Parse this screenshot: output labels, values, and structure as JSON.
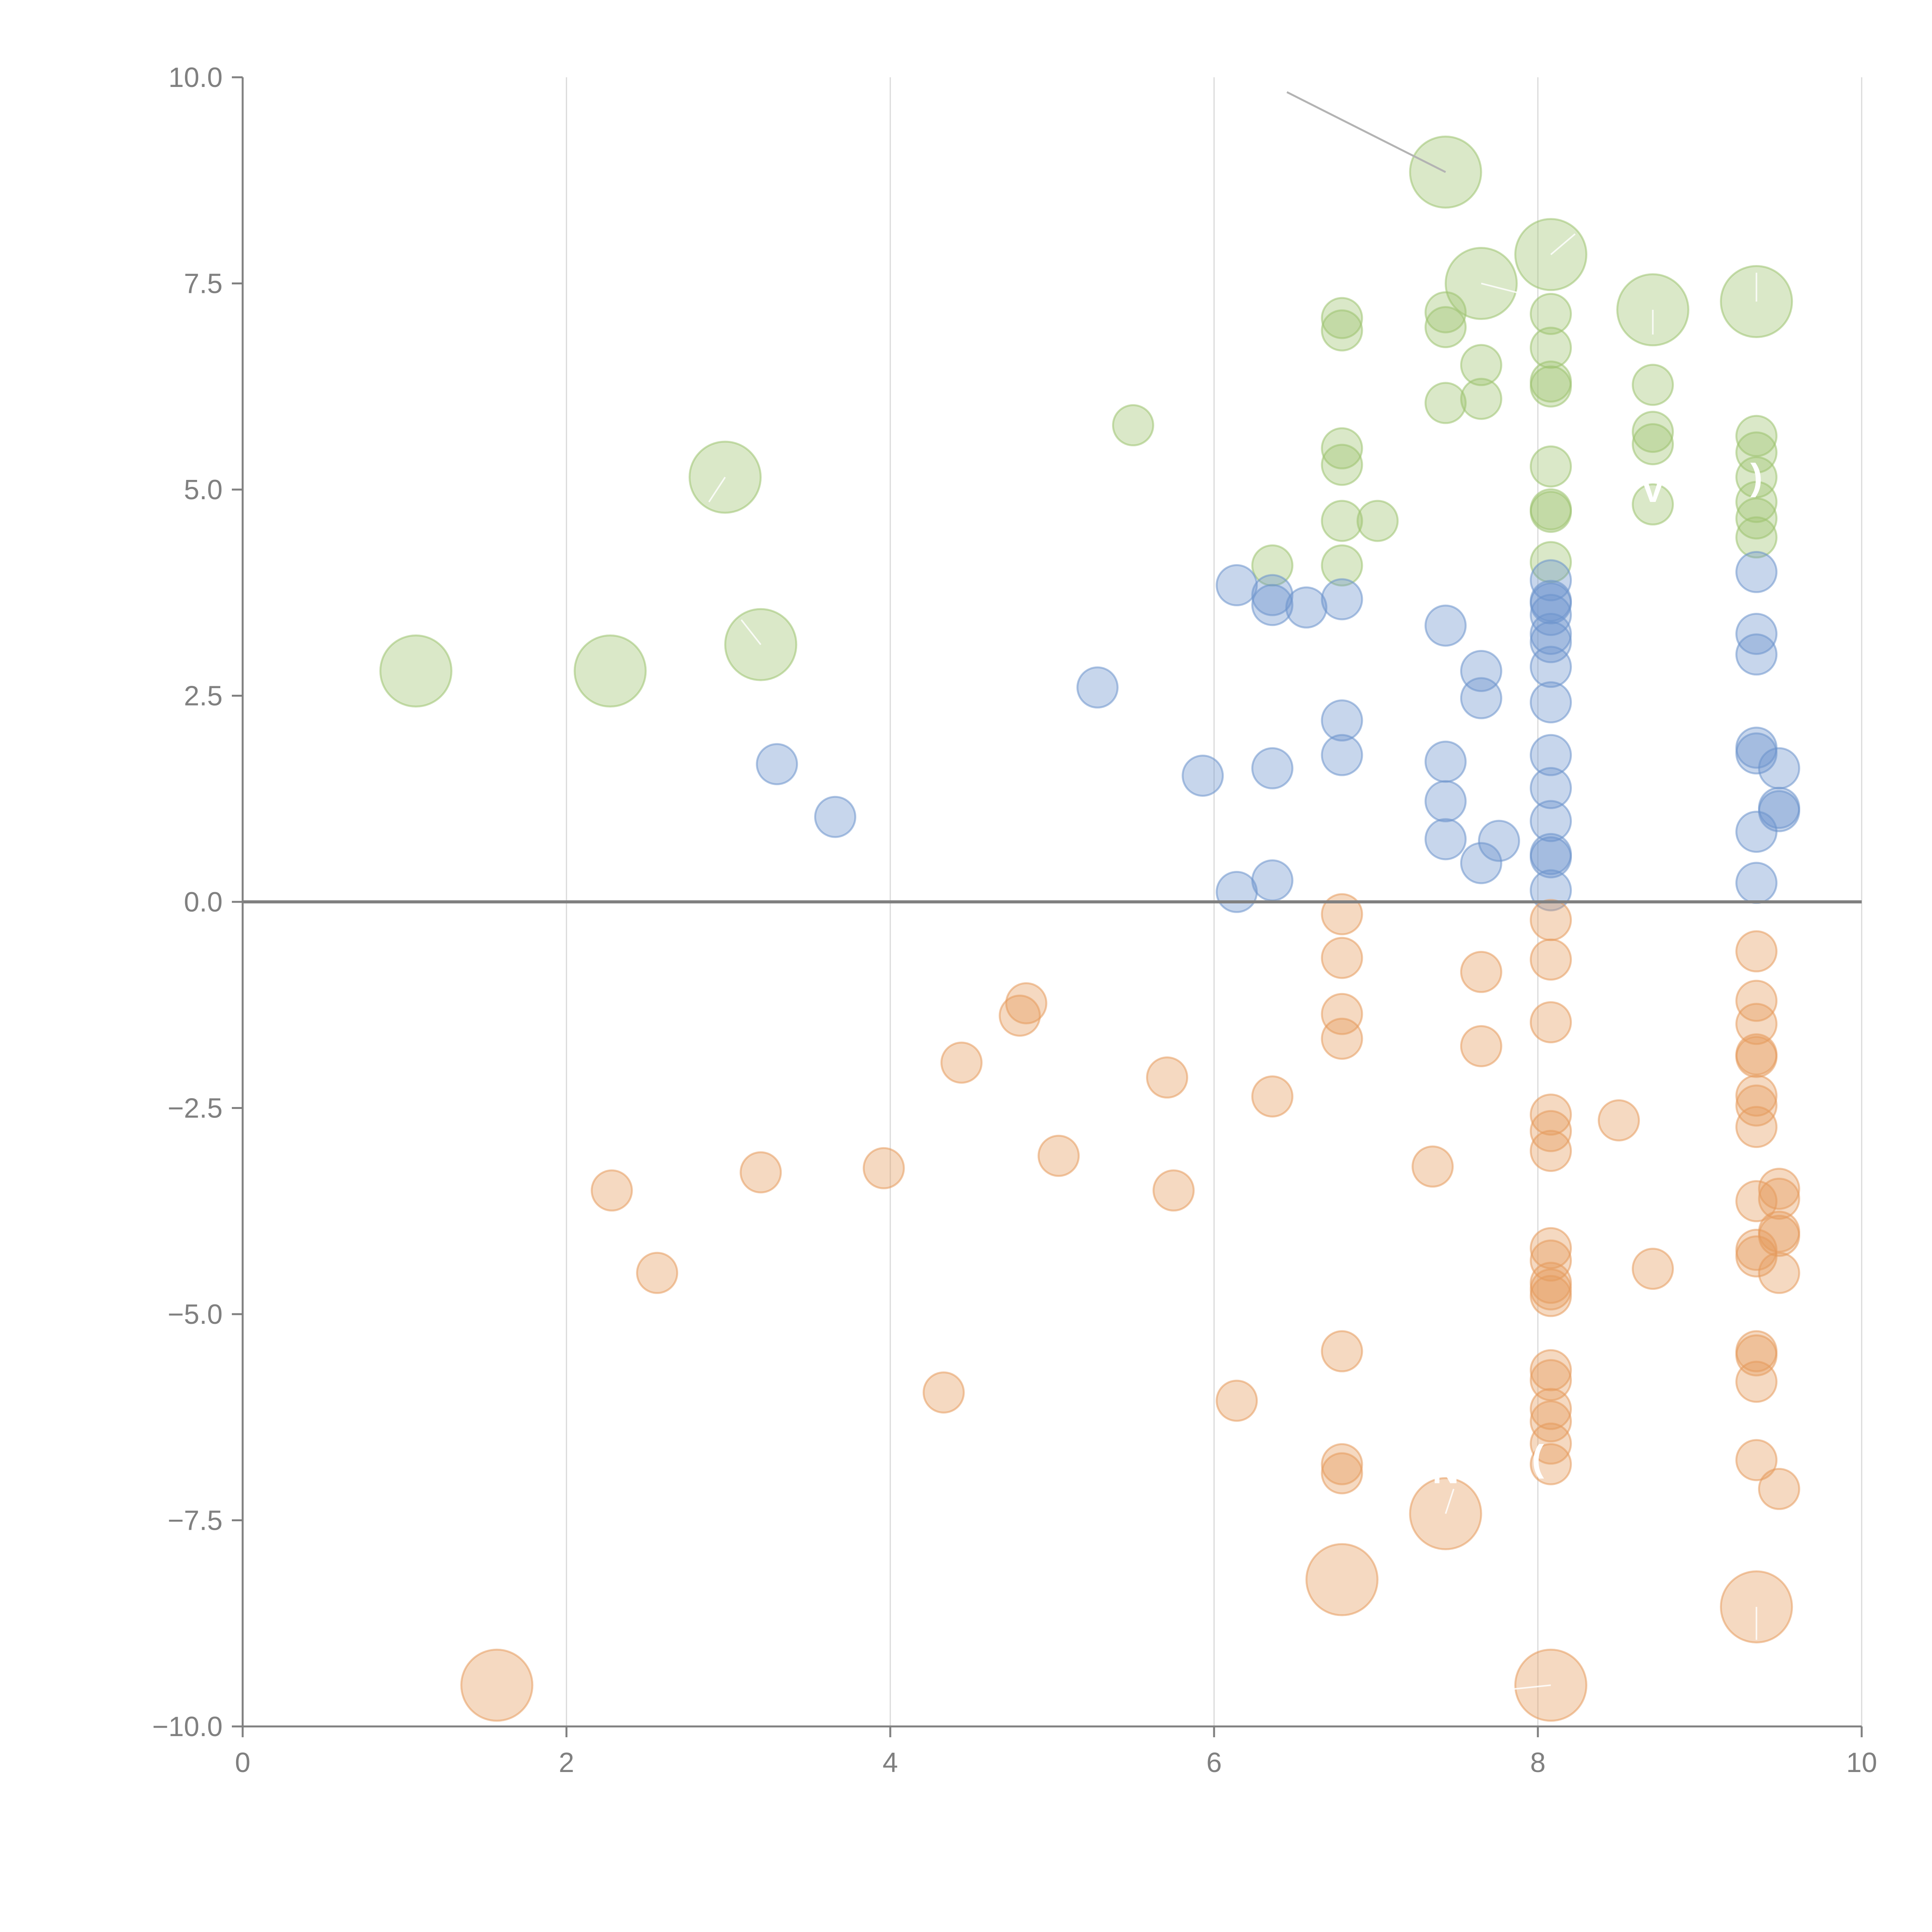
{
  "chart_data": {
    "type": "scatter",
    "title": "",
    "xlabel": "",
    "ylabel": "",
    "xlim": [
      0,
      10
    ],
    "ylim": [
      -10,
      10
    ],
    "grid": "vertical",
    "legend": "none",
    "xticks": [
      0,
      2,
      4,
      6,
      8,
      10
    ],
    "yticks": [
      10.0,
      7.5,
      5.0,
      2.5,
      0.0,
      -2.5,
      -5.0,
      -7.5,
      -10.0
    ],
    "xtick_labels": [
      "0",
      "2",
      "4",
      "6",
      "8",
      "10"
    ],
    "ytick_labels": [
      "10.0",
      "7.5",
      "5.0",
      "2.5",
      "0.0",
      "−2.5",
      "−5.0",
      "−7.5",
      "−10.0"
    ],
    "series": [
      {
        "name": "green",
        "color": "#9dc36f",
        "points": [
          [
            7.43,
            8.85,
            "L"
          ],
          [
            7.65,
            7.5,
            "L"
          ],
          [
            8.08,
            7.85,
            "L"
          ],
          [
            8.71,
            7.18,
            "L"
          ],
          [
            9.35,
            7.28,
            "L"
          ],
          [
            2.98,
            5.15,
            "L"
          ],
          [
            3.2,
            3.12,
            "L"
          ],
          [
            1.07,
            2.8,
            "L"
          ],
          [
            2.27,
            2.8,
            "L"
          ],
          [
            6.79,
            7.08,
            "S"
          ],
          [
            6.79,
            6.93,
            "S"
          ],
          [
            7.43,
            7.15,
            "S"
          ],
          [
            7.43,
            6.97,
            "S"
          ],
          [
            7.65,
            6.51,
            "S"
          ],
          [
            7.65,
            6.1,
            "S"
          ],
          [
            7.43,
            6.05,
            "S"
          ],
          [
            8.08,
            7.13,
            "S"
          ],
          [
            8.08,
            6.72,
            "S"
          ],
          [
            8.08,
            6.31,
            "S"
          ],
          [
            8.08,
            6.25,
            "S"
          ],
          [
            8.71,
            6.27,
            "S"
          ],
          [
            8.71,
            5.7,
            "S"
          ],
          [
            8.71,
            5.55,
            "S"
          ],
          [
            8.71,
            4.82,
            "S"
          ],
          [
            5.5,
            5.78,
            "S"
          ],
          [
            6.79,
            5.5,
            "S"
          ],
          [
            6.79,
            5.3,
            "S"
          ],
          [
            6.79,
            4.62,
            "S"
          ],
          [
            7.01,
            4.62,
            "S"
          ],
          [
            6.36,
            4.08,
            "S"
          ],
          [
            6.79,
            4.08,
            "S"
          ],
          [
            8.08,
            5.28,
            "S"
          ],
          [
            8.08,
            4.76,
            "S"
          ],
          [
            8.08,
            4.73,
            "S"
          ],
          [
            8.08,
            4.12,
            "S"
          ],
          [
            9.35,
            5.65,
            "S"
          ],
          [
            9.35,
            5.45,
            "S"
          ],
          [
            9.35,
            5.15,
            "S"
          ],
          [
            9.35,
            4.85,
            "S"
          ],
          [
            9.35,
            4.65,
            "S"
          ],
          [
            9.35,
            4.42,
            "S"
          ]
        ]
      },
      {
        "name": "blue",
        "color": "#6b94cc",
        "points": [
          [
            6.14,
            3.84,
            "S"
          ],
          [
            6.36,
            3.72,
            "S"
          ],
          [
            6.36,
            3.6,
            "S"
          ],
          [
            6.57,
            3.57,
            "S"
          ],
          [
            6.79,
            3.67,
            "S"
          ],
          [
            7.43,
            3.35,
            "S"
          ],
          [
            8.08,
            3.9,
            "S"
          ],
          [
            8.08,
            3.65,
            "S"
          ],
          [
            8.08,
            3.62,
            "S"
          ],
          [
            8.08,
            3.48,
            "S"
          ],
          [
            8.08,
            3.25,
            "S"
          ],
          [
            8.08,
            3.15,
            "S"
          ],
          [
            8.08,
            2.85,
            "S"
          ],
          [
            8.08,
            2.42,
            "S"
          ],
          [
            9.35,
            4.0,
            "S"
          ],
          [
            9.35,
            3.25,
            "S"
          ],
          [
            9.35,
            3.0,
            "S"
          ],
          [
            5.28,
            2.6,
            "S"
          ],
          [
            7.65,
            2.8,
            "S"
          ],
          [
            7.65,
            2.47,
            "S"
          ],
          [
            6.79,
            2.2,
            "S"
          ],
          [
            6.79,
            1.78,
            "S"
          ],
          [
            3.3,
            1.67,
            "S"
          ],
          [
            3.66,
            1.03,
            "S"
          ],
          [
            5.93,
            1.53,
            "S"
          ],
          [
            6.36,
            1.62,
            "S"
          ],
          [
            7.43,
            1.7,
            "S"
          ],
          [
            7.43,
            1.22,
            "S"
          ],
          [
            7.43,
            0.76,
            "S"
          ],
          [
            7.65,
            0.47,
            "S"
          ],
          [
            7.76,
            0.74,
            "S"
          ],
          [
            6.14,
            0.12,
            "S"
          ],
          [
            6.36,
            0.26,
            "S"
          ],
          [
            8.08,
            1.78,
            "S"
          ],
          [
            8.08,
            1.38,
            "S"
          ],
          [
            8.08,
            0.98,
            "S"
          ],
          [
            8.08,
            0.58,
            "S"
          ],
          [
            8.08,
            0.54,
            "S"
          ],
          [
            8.08,
            0.14,
            "S"
          ],
          [
            9.35,
            1.87,
            "S"
          ],
          [
            9.35,
            1.8,
            "S"
          ],
          [
            9.49,
            1.62,
            "S"
          ],
          [
            9.49,
            1.14,
            "S"
          ],
          [
            9.49,
            1.1,
            "S"
          ],
          [
            9.35,
            0.85,
            "S"
          ],
          [
            9.35,
            0.23,
            "S"
          ]
        ]
      },
      {
        "name": "orange",
        "color": "#e59a5c",
        "points": [
          [
            6.79,
            -0.15,
            "S"
          ],
          [
            6.79,
            -0.68,
            "S"
          ],
          [
            6.79,
            -1.36,
            "S"
          ],
          [
            6.79,
            -1.66,
            "S"
          ],
          [
            7.65,
            -0.85,
            "S"
          ],
          [
            7.65,
            -1.75,
            "S"
          ],
          [
            8.08,
            -0.22,
            "S"
          ],
          [
            8.08,
            -0.7,
            "S"
          ],
          [
            8.08,
            -1.46,
            "S"
          ],
          [
            8.08,
            -2.58,
            "S"
          ],
          [
            8.08,
            -2.78,
            "S"
          ],
          [
            8.08,
            -3.02,
            "S"
          ],
          [
            9.35,
            -0.6,
            "S"
          ],
          [
            9.35,
            -1.2,
            "S"
          ],
          [
            9.35,
            -1.48,
            "S"
          ],
          [
            9.35,
            -1.85,
            "S"
          ],
          [
            9.35,
            -1.88,
            "S"
          ],
          [
            9.35,
            -2.35,
            "S"
          ],
          [
            9.35,
            -2.47,
            "S"
          ],
          [
            9.35,
            -2.73,
            "S"
          ],
          [
            4.84,
            -1.23,
            "S"
          ],
          [
            4.8,
            -1.38,
            "S"
          ],
          [
            4.44,
            -1.95,
            "S"
          ],
          [
            5.71,
            -2.13,
            "S"
          ],
          [
            6.36,
            -2.36,
            "S"
          ],
          [
            8.5,
            -2.65,
            "S"
          ],
          [
            2.28,
            -3.5,
            "S"
          ],
          [
            3.2,
            -3.28,
            "S"
          ],
          [
            3.96,
            -3.23,
            "S"
          ],
          [
            5.04,
            -3.08,
            "S"
          ],
          [
            5.75,
            -3.5,
            "S"
          ],
          [
            7.35,
            -3.21,
            "S"
          ],
          [
            2.56,
            -4.5,
            "S"
          ],
          [
            9.49,
            -3.48,
            "S"
          ],
          [
            9.49,
            -3.6,
            "S"
          ],
          [
            9.35,
            -3.63,
            "S"
          ],
          [
            9.49,
            -4.0,
            "S"
          ],
          [
            9.49,
            -4.05,
            "S"
          ],
          [
            9.35,
            -4.22,
            "S"
          ],
          [
            9.35,
            -4.3,
            "S"
          ],
          [
            8.08,
            -4.2,
            "S"
          ],
          [
            8.08,
            -4.35,
            "S"
          ],
          [
            8.08,
            -4.62,
            "S"
          ],
          [
            8.08,
            -4.7,
            "S"
          ],
          [
            8.08,
            -4.78,
            "S"
          ],
          [
            8.71,
            -4.45,
            "S"
          ],
          [
            9.49,
            -4.5,
            "S"
          ],
          [
            6.79,
            -5.45,
            "S"
          ],
          [
            4.33,
            -5.95,
            "S"
          ],
          [
            6.14,
            -6.05,
            "S"
          ],
          [
            8.08,
            -5.68,
            "S"
          ],
          [
            8.08,
            -5.8,
            "S"
          ],
          [
            8.08,
            -6.15,
            "S"
          ],
          [
            8.08,
            -6.3,
            "S"
          ],
          [
            8.08,
            -6.57,
            "S"
          ],
          [
            8.08,
            -6.82,
            "S"
          ],
          [
            9.35,
            -5.45,
            "S"
          ],
          [
            9.35,
            -5.5,
            "S"
          ],
          [
            9.35,
            -5.82,
            "S"
          ],
          [
            9.35,
            -6.77,
            "S"
          ],
          [
            9.49,
            -7.12,
            "S"
          ],
          [
            6.79,
            -6.82,
            "S"
          ],
          [
            6.79,
            -6.93,
            "S"
          ],
          [
            7.43,
            -7.42,
            "L"
          ],
          [
            6.79,
            -8.22,
            "L"
          ],
          [
            9.35,
            -8.55,
            "L"
          ],
          [
            8.08,
            -9.5,
            "L"
          ],
          [
            1.57,
            -9.5,
            "L"
          ]
        ]
      }
    ],
    "annotations": [
      {
        "text": "N",
        "x": 7.43,
        "y": -7.05
      },
      {
        "text": "(",
        "x": 8.0,
        "y": -6.9
      },
      {
        "text": "V",
        "x": 8.71,
        "y": 4.85
      },
      {
        "text": ")",
        "x": 9.35,
        "y": 5.0
      }
    ]
  }
}
